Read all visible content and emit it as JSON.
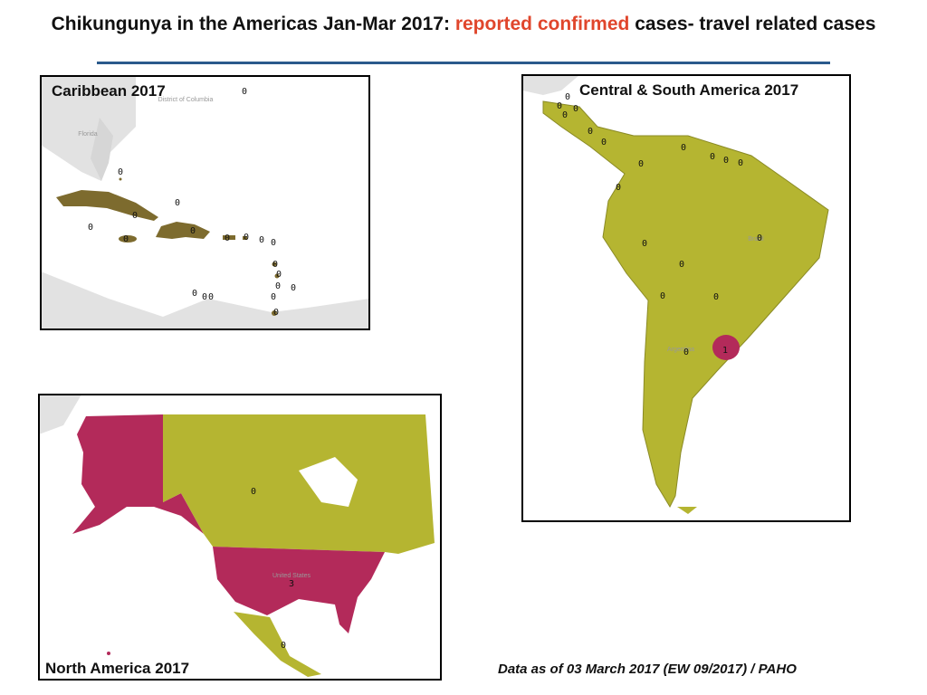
{
  "title": [
    "Chikungunya in the Americas Jan-Mar 2017:",
    "reported confirmed",
    "cases- travel related cases"
  ],
  "maps": [
    {
      "title": "Caribbean 2017",
      "place_names": [
        "District of Columbia",
        "Florida"
      ],
      "labels": [
        0,
        0,
        0,
        0,
        0,
        0,
        0,
        0,
        0,
        0,
        0,
        0,
        0,
        0,
        0,
        0,
        0,
        0,
        0,
        0
      ]
    },
    {
      "title": "Central & South America 2017",
      "place_names": [
        "Brazil",
        "Argentina"
      ],
      "labels": [
        0,
        0,
        0,
        0,
        0,
        0,
        0,
        0,
        0,
        0,
        0,
        0,
        0,
        0,
        0,
        0,
        0,
        0,
        1
      ]
    },
    {
      "title": "North America 2017",
      "place_names": [
        "United States"
      ],
      "labels": [
        0,
        3,
        0
      ]
    }
  ],
  "footer": "Data as of 03 March 2017 (EW 09/2017) / PAHO"
}
